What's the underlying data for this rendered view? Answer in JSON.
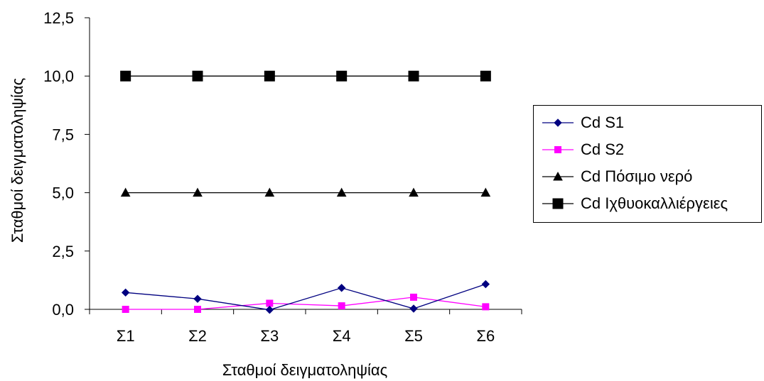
{
  "chart_data": {
    "type": "line",
    "title": "",
    "xlabel": "Σταθμοί δειγματοληψίας",
    "ylabel": "Σταθμοί δειγματοληψίας",
    "categories": [
      "Σ1",
      "Σ2",
      "Σ3",
      "Σ4",
      "Σ5",
      "Σ6"
    ],
    "ylim": [
      0,
      12.5
    ],
    "yticks": [
      "0,0",
      "2,5",
      "5,0",
      "7,5",
      "10,0",
      "12,5"
    ],
    "ytick_values": [
      0,
      2.5,
      5,
      7.5,
      10,
      12.5
    ],
    "grid": false,
    "legend_position": "right",
    "series": [
      {
        "name": "Cd S1",
        "values": [
          0.72,
          0.45,
          -0.02,
          0.92,
          0.03,
          1.08
        ],
        "color": "#000080",
        "marker": "diamond"
      },
      {
        "name": "Cd S2",
        "values": [
          0.0,
          0.0,
          0.26,
          0.15,
          0.52,
          0.11
        ],
        "color": "#FF00FF",
        "marker": "square"
      },
      {
        "name": "Cd Πόσιμο νερό",
        "values": [
          5,
          5,
          5,
          5,
          5,
          5
        ],
        "color": "#000000",
        "marker": "triangle"
      },
      {
        "name": "Cd Ιχθυοκαλλιέργειες",
        "values": [
          10,
          10,
          10,
          10,
          10,
          10
        ],
        "color": "#000000",
        "marker": "big-square"
      }
    ]
  }
}
